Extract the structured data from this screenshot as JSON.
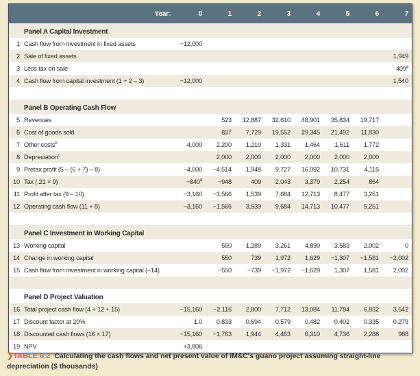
{
  "header": {
    "year_label": "Year:",
    "years": [
      "0",
      "1",
      "2",
      "3",
      "4",
      "5",
      "6",
      "7"
    ]
  },
  "rows": [
    {
      "type": "panel",
      "label": "Panel A Capital Investment"
    },
    {
      "n": "1",
      "label": "Cash flow from investment in fixed assets",
      "cells": [
        "−12,000",
        "",
        "",
        "",
        "",
        "",
        "",
        ""
      ]
    },
    {
      "n": "2",
      "label": "Sale of fixed assets",
      "cells": [
        "",
        "",
        "",
        "",
        "",
        "",
        "",
        "1,949"
      ]
    },
    {
      "n": "3",
      "label": "Less tax on sale",
      "cells": [
        "",
        "",
        "",
        "",
        "",
        "",
        "",
        [
          "409",
          "a"
        ]
      ]
    },
    {
      "n": "4",
      "label": "Cash flow from capital investment (1 + 2 – 3)",
      "cells": [
        "−12,000",
        "",
        "",
        "",
        "",
        "",
        "",
        "1,540"
      ]
    },
    {
      "type": "blank"
    },
    {
      "type": "panel",
      "label": "Panel B Operating Cash Flow"
    },
    {
      "n": "5",
      "label": "Revenues",
      "cells": [
        "",
        "523",
        "12,887",
        "32,610",
        "48,901",
        "35,834",
        "19,717",
        ""
      ]
    },
    {
      "n": "6",
      "label": "Cost of goods sold",
      "cells": [
        "",
        "837",
        "7,729",
        "19,552",
        "29,345",
        "21,492",
        "11,830",
        ""
      ]
    },
    {
      "n": "7",
      "label": "Other costs",
      "sup": "b",
      "cells": [
        "4,000",
        "2,200",
        "1,210",
        "1,331",
        "1,464",
        "1,611",
        "1,772",
        ""
      ]
    },
    {
      "n": "8",
      "label": "Depreciation",
      "sup": "c",
      "cells": [
        "",
        "2,000",
        "2,000",
        "2,000",
        "2,000",
        "2,000",
        "2,000",
        ""
      ]
    },
    {
      "n": "9",
      "label": "Pretax profit (5 – (6 + 7) – 8)",
      "cells": [
        "−4,000",
        "−4,514",
        "1,948",
        "9,727",
        "16,092",
        "10,731",
        "4,115",
        ""
      ]
    },
    {
      "n": "10",
      "label": "Tax (.21 × 9)",
      "cells": [
        [
          "−840",
          "d"
        ],
        "−948",
        "409",
        "2,043",
        "3,379",
        "2,254",
        "864",
        ""
      ]
    },
    {
      "n": "11",
      "label": "Profit after tax (9 – 10)",
      "cells": [
        "−3,160",
        "−3,566",
        "1,539",
        "7,684",
        "12,713",
        "8,477",
        "3,251",
        ""
      ]
    },
    {
      "n": "12",
      "label": "Operating cash flow (11 + 8)",
      "cells": [
        "−3,160",
        "−1,566",
        "3,539",
        "9,684",
        "14,713",
        "10,477",
        "5,251",
        ""
      ]
    },
    {
      "type": "blank"
    },
    {
      "type": "panel",
      "label": "Panel C Investment in Working Capital"
    },
    {
      "n": "13",
      "label": "Working capital",
      "cells": [
        "",
        "550",
        "1,289",
        "3,261",
        "4,890",
        "3,583",
        "2,002",
        "0"
      ]
    },
    {
      "n": "14",
      "label": "Change in working capital",
      "cells": [
        "",
        "550",
        "739",
        "1,972",
        "1,629",
        "−1,307",
        "−1,581",
        "−2,002"
      ]
    },
    {
      "n": "15",
      "label": "Cash flow from investment in working capital (–14)",
      "cells": [
        "",
        "−550",
        "−739",
        "−1,972",
        "−1,629",
        "1,307",
        "1,581",
        "2,002"
      ]
    },
    {
      "type": "blank"
    },
    {
      "type": "panel",
      "label": "Panel D Project Valuation"
    },
    {
      "n": "16",
      "label": "Total project cash flow (4 + 12 + 15)",
      "cells": [
        "−15,160",
        "−2,116",
        "2,800",
        "7,712",
        "13,084",
        "11,784",
        "6,832",
        "3,542"
      ]
    },
    {
      "n": "17",
      "label": "Discount factor at 20%",
      "cells": [
        "1.0",
        "0.833",
        "0.694",
        "0.579",
        "0.482",
        "0.402",
        "0.335",
        "0.279"
      ]
    },
    {
      "n": "18",
      "label": "Discounted cash flows (16 × 17)",
      "cells": [
        "−15,160",
        "−1,763",
        "1,944",
        "4,463",
        "6,310",
        "4,736",
        "2,288",
        "988"
      ]
    },
    {
      "n": "19",
      "label": "NPV",
      "cells": [
        "+3,806",
        "",
        "",
        "",
        "",
        "",
        "",
        ""
      ]
    }
  ],
  "caption": {
    "tag": "❯TABLE 6.2",
    "text": "Calculating the cash flows and net present value of IM&C's guano project assuming straight-line depreciation ($ thousands)"
  }
}
